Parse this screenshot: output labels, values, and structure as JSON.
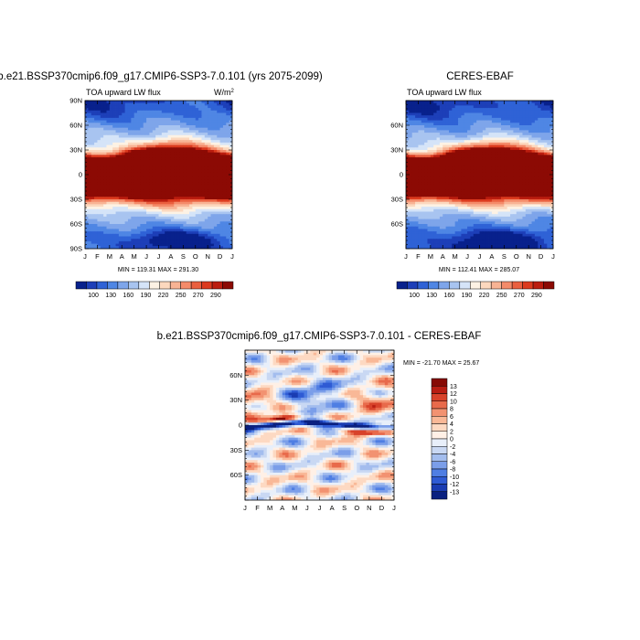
{
  "figure": {
    "month_labels": [
      "J",
      "F",
      "M",
      "A",
      "M",
      "J",
      "J",
      "A",
      "S",
      "O",
      "N",
      "D",
      "J"
    ],
    "lat_labels_full": [
      "90N",
      "60N",
      "30N",
      "0",
      "30S",
      "60S",
      "90S"
    ],
    "lat_labels_short": [
      "60N",
      "30N",
      "0",
      "30S",
      "60S"
    ]
  },
  "chart_data": [
    {
      "type": "heatmap",
      "title": "b.e21.BSSP370cmip6.f09_g17.CMIP6-SSP3-7.0.101 (yrs 2075-2099)",
      "variable": "TOA upward LW flux",
      "units_label": "W/m",
      "units_exponent": "2",
      "x_axis": "month",
      "y_axis": "latitude",
      "ylim": [
        -90,
        90
      ],
      "stats": "MIN = 119.31 MAX = 291.30",
      "colorbar_labels": [
        "100",
        "130",
        "160",
        "190",
        "220",
        "250",
        "270",
        "290"
      ],
      "features": [
        {
          "name": "itcz-nh-max",
          "month": 2.5,
          "lat": 16,
          "approx_value": 291
        },
        {
          "name": "sh-subtropical-max",
          "month": 8.0,
          "lat": -15,
          "approx_value": 280
        },
        {
          "name": "antarctic-min",
          "month": 7.0,
          "lat": -80,
          "approx_value": 119
        }
      ]
    },
    {
      "type": "heatmap",
      "title": "CERES-EBAF",
      "variable": "TOA upward LW flux",
      "x_axis": "month",
      "y_axis": "latitude",
      "ylim": [
        -90,
        90
      ],
      "stats": "MIN = 112.41 MAX = 285.07",
      "colorbar_labels": [
        "100",
        "130",
        "160",
        "190",
        "220",
        "250",
        "270",
        "290"
      ],
      "features": [
        {
          "name": "itcz-nh-max",
          "month": 2.5,
          "lat": 16,
          "approx_value": 285
        },
        {
          "name": "sh-subtropical-max",
          "month": 8.0,
          "lat": -16,
          "approx_value": 278
        },
        {
          "name": "antarctic-min",
          "month": 7.0,
          "lat": -80,
          "approx_value": 112
        }
      ]
    },
    {
      "type": "heatmap",
      "title": "b.e21.BSSP370cmip6.f09_g17.CMIP6-SSP3-7.0.101 - CERES-EBAF",
      "x_axis": "month",
      "y_axis": "latitude",
      "ylim": [
        -90,
        90
      ],
      "stats": "MIN = -21.70 MAX =  25.67",
      "colorbar_labels": [
        "13",
        "12",
        "10",
        "8",
        "6",
        "4",
        "2",
        "0",
        "-2",
        "-4",
        "-6",
        "-8",
        "-10",
        "-12",
        "-13"
      ],
      "features": [
        {
          "name": "equatorial-negative-band",
          "lat": 0,
          "approx_value": -13
        },
        {
          "name": "positive-anomaly-mar-apr",
          "month": 3.0,
          "lat": 4,
          "approx_value": 25.67
        },
        {
          "name": "positive-anomaly-sep-oct",
          "month": 9.5,
          "lat": -4,
          "approx_value": 14
        }
      ]
    }
  ],
  "colors": {
    "abs_palette": [
      "#08218c",
      "#1d3fb8",
      "#2f62d6",
      "#4f86e4",
      "#7ea5ea",
      "#a8c4f0",
      "#d5e4f8",
      "#fdf2e4",
      "#fcd8be",
      "#f8b394",
      "#f48b6a",
      "#ea5f3f",
      "#dc3a1e",
      "#bb1d0f",
      "#8c0a04"
    ],
    "diff_palette": [
      "#0a2080",
      "#1a3cb2",
      "#2f5bd4",
      "#4f7ee3",
      "#7b9ee9",
      "#a3bdee",
      "#c9d8f3",
      "#e8effa",
      "#fff0e6",
      "#fdd9c2",
      "#f9b897",
      "#f29271",
      "#e86a4b",
      "#d8422a",
      "#b81d12",
      "#860a04"
    ]
  }
}
